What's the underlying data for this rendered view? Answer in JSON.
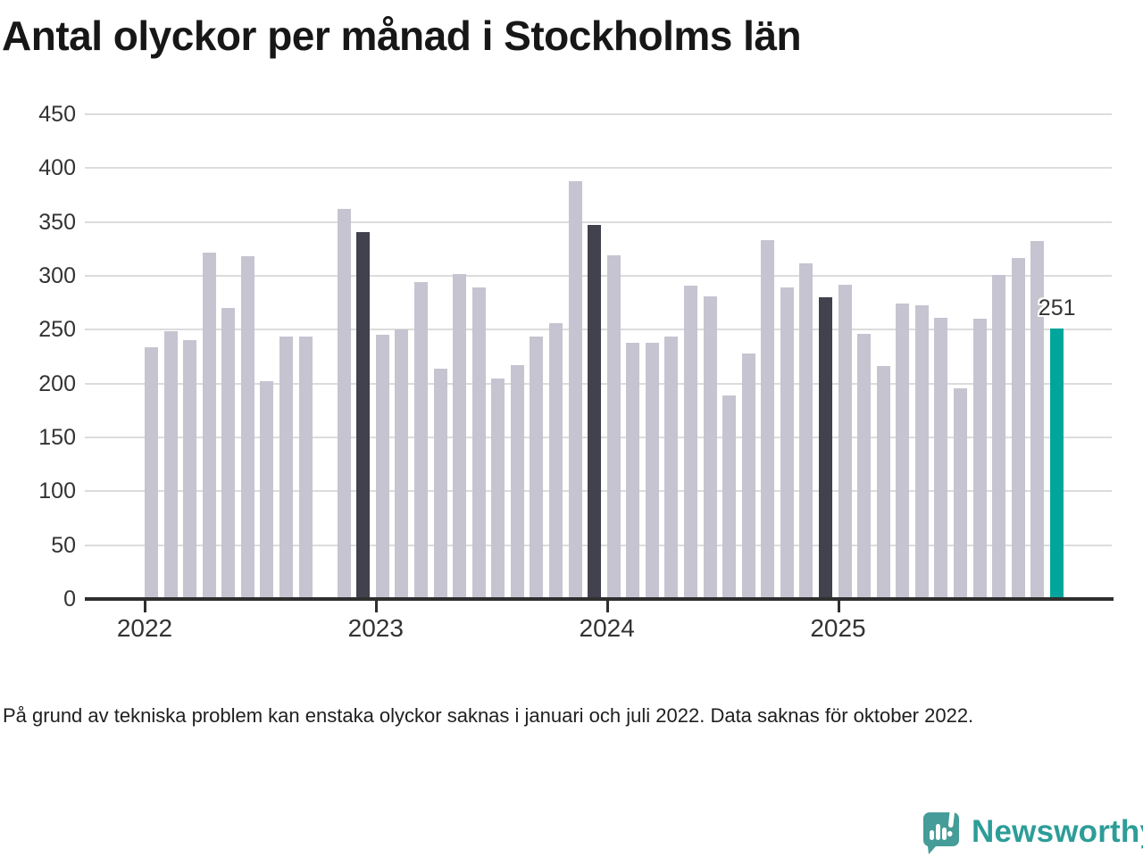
{
  "title": "Antal olyckor per månad i Stockholms län",
  "footnote": "På grund av tekniska problem kan enstaka olyckor saknas i januari och juli 2022. Data saknas för oktober 2022.",
  "logo": {
    "brand": "Newsworthy"
  },
  "colors": {
    "bar_base": "#c6c4d0",
    "bar_dark": "#42424e",
    "bar_accent": "#00a69c",
    "gridline": "#dcdcdc",
    "axis": "#2f2f2f",
    "tick_label": "#333333",
    "logo_teal": "#2d9d98",
    "logo_icon_teal": "#459c98"
  },
  "chart_data": {
    "type": "bar",
    "title": "Antal olyckor per månad i Stockholms län",
    "xlabel": "",
    "ylabel": "",
    "ylim": [
      0,
      450
    ],
    "yticks": [
      0,
      50,
      100,
      150,
      200,
      250,
      300,
      350,
      400,
      450
    ],
    "grid": true,
    "legend": false,
    "year_ticks": [
      {
        "label": "2022",
        "month_index": 0
      },
      {
        "label": "2023",
        "month_index": 12
      },
      {
        "label": "2024",
        "month_index": 24
      },
      {
        "label": "2025",
        "month_index": 36
      }
    ],
    "annotation": {
      "text": "251",
      "target_month": "dec 2025"
    },
    "series": [
      {
        "name": "Antal olyckor",
        "points": [
          {
            "month": "jan 2022",
            "value": 234,
            "style": "base"
          },
          {
            "month": "feb 2022",
            "value": 249,
            "style": "base"
          },
          {
            "month": "mar 2022",
            "value": 240,
            "style": "base"
          },
          {
            "month": "apr 2022",
            "value": 322,
            "style": "base"
          },
          {
            "month": "maj 2022",
            "value": 270,
            "style": "base"
          },
          {
            "month": "jun 2022",
            "value": 318,
            "style": "base"
          },
          {
            "month": "jul 2022",
            "value": 202,
            "style": "base"
          },
          {
            "month": "aug 2022",
            "value": 244,
            "style": "base"
          },
          {
            "month": "sep 2022",
            "value": 244,
            "style": "base"
          },
          {
            "month": "okt 2022",
            "value": null,
            "style": "base"
          },
          {
            "month": "nov 2022",
            "value": 362,
            "style": "base"
          },
          {
            "month": "dec 2022",
            "value": 341,
            "style": "dark"
          },
          {
            "month": "jan 2023",
            "value": 245,
            "style": "base"
          },
          {
            "month": "feb 2023",
            "value": 250,
            "style": "base"
          },
          {
            "month": "mar 2023",
            "value": 294,
            "style": "base"
          },
          {
            "month": "apr 2023",
            "value": 214,
            "style": "base"
          },
          {
            "month": "maj 2023",
            "value": 302,
            "style": "base"
          },
          {
            "month": "jun 2023",
            "value": 289,
            "style": "base"
          },
          {
            "month": "jul 2023",
            "value": 205,
            "style": "base"
          },
          {
            "month": "aug 2023",
            "value": 217,
            "style": "base"
          },
          {
            "month": "sep 2023",
            "value": 244,
            "style": "base"
          },
          {
            "month": "okt 2023",
            "value": 256,
            "style": "base"
          },
          {
            "month": "nov 2023",
            "value": 388,
            "style": "base"
          },
          {
            "month": "dec 2023",
            "value": 347,
            "style": "dark"
          },
          {
            "month": "jan 2024",
            "value": 319,
            "style": "base"
          },
          {
            "month": "feb 2024",
            "value": 238,
            "style": "base"
          },
          {
            "month": "mar 2024",
            "value": 238,
            "style": "base"
          },
          {
            "month": "apr 2024",
            "value": 244,
            "style": "base"
          },
          {
            "month": "maj 2024",
            "value": 291,
            "style": "base"
          },
          {
            "month": "jun 2024",
            "value": 281,
            "style": "base"
          },
          {
            "month": "jul 2024",
            "value": 189,
            "style": "base"
          },
          {
            "month": "aug 2024",
            "value": 228,
            "style": "base"
          },
          {
            "month": "sep 2024",
            "value": 333,
            "style": "base"
          },
          {
            "month": "okt 2024",
            "value": 289,
            "style": "base"
          },
          {
            "month": "nov 2024",
            "value": 312,
            "style": "base"
          },
          {
            "month": "dec 2024",
            "value": 280,
            "style": "dark"
          },
          {
            "month": "jan 2025",
            "value": 292,
            "style": "base"
          },
          {
            "month": "feb 2025",
            "value": 246,
            "style": "base"
          },
          {
            "month": "mar 2025",
            "value": 216,
            "style": "base"
          },
          {
            "month": "apr 2025",
            "value": 274,
            "style": "base"
          },
          {
            "month": "maj 2025",
            "value": 273,
            "style": "base"
          },
          {
            "month": "jun 2025",
            "value": 261,
            "style": "base"
          },
          {
            "month": "jul 2025",
            "value": 196,
            "style": "base"
          },
          {
            "month": "aug 2025",
            "value": 260,
            "style": "base"
          },
          {
            "month": "sep 2025",
            "value": 301,
            "style": "base"
          },
          {
            "month": "okt 2025",
            "value": 317,
            "style": "base"
          },
          {
            "month": "nov 2025",
            "value": 332,
            "style": "base"
          },
          {
            "month": "dec 2025",
            "value": 251,
            "style": "accent"
          }
        ]
      }
    ]
  }
}
